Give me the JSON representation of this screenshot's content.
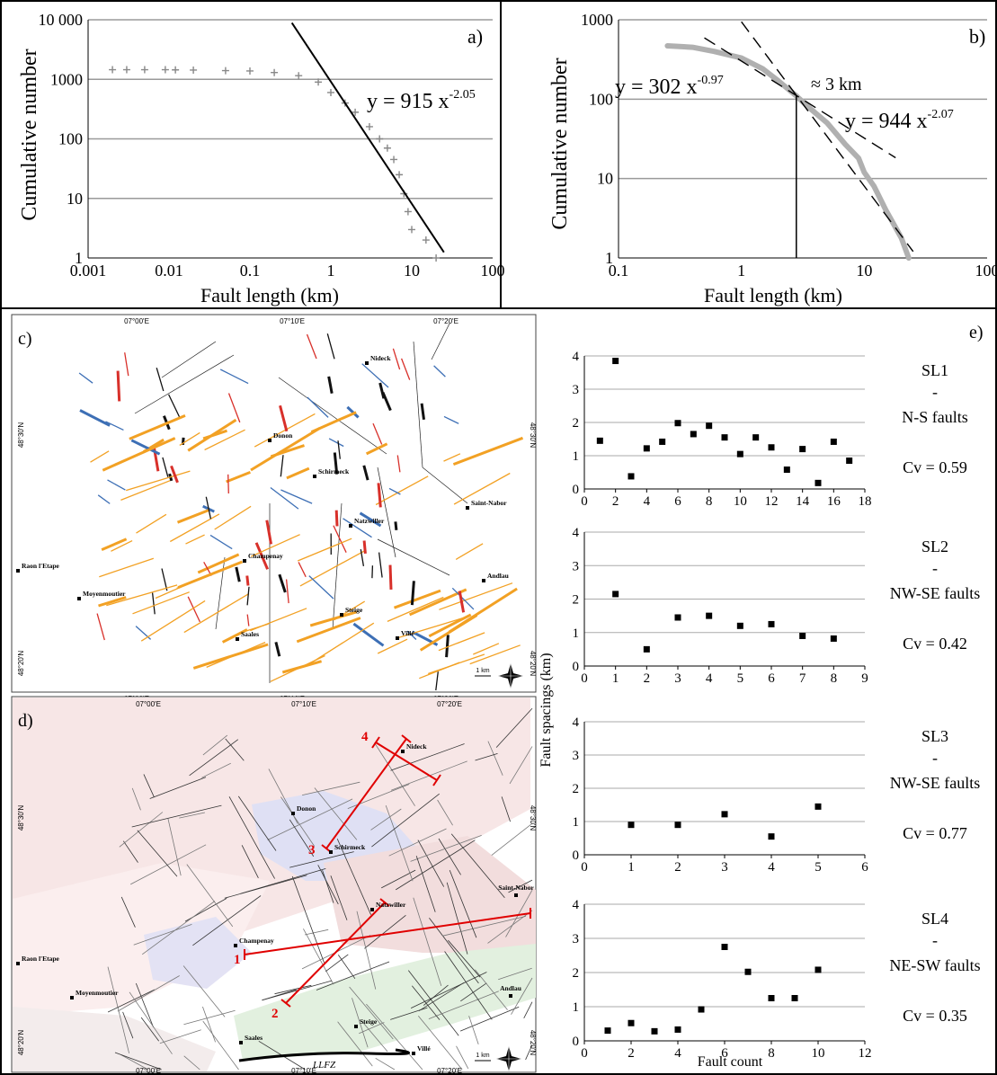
{
  "figure": {
    "panel_a": {
      "tag": "a)",
      "xlabel": "Fault length (km)",
      "ylabel": "Cumulative number",
      "x_ticks": [
        "0.001",
        "0.01",
        "0.1",
        "1",
        "10",
        "100"
      ],
      "y_ticks": [
        "1",
        "10",
        "100",
        "1000",
        "10 000"
      ],
      "eq_main": "y = 915 x",
      "eq_exp": "-2.05"
    },
    "panel_b": {
      "tag": "b)",
      "xlabel": "Fault length (km)",
      "ylabel": "Cumulative number",
      "x_ticks": [
        "0.1",
        "1",
        "10",
        "100"
      ],
      "y_ticks": [
        "1",
        "10",
        "100",
        "1000"
      ],
      "eq1_main": "y = 302 x",
      "eq1_exp": "-0.97",
      "eq2_main": "y = 944 x",
      "eq2_exp": "-2.07",
      "break_label": "≈ 3 km"
    },
    "panel_c": {
      "tag": "c)",
      "lon_labels": [
        "07°00'E",
        "07°10'E",
        "07°20'E"
      ],
      "lat_labels": [
        "48°30'N",
        "48°20'N"
      ],
      "towns": [
        "Nideck",
        "Donon",
        "Schirmeck",
        "Natzwiller",
        "Saint-Nabor",
        "Champenay",
        "Raon l'Etape",
        "Moyenmoutier",
        "Andlau",
        "Steige",
        "Saales",
        "Villé"
      ],
      "scale": "1 km"
    },
    "panel_d": {
      "tag": "d)",
      "lon_labels": [
        "07°00'E",
        "07°10'E",
        "07°20'E"
      ],
      "lat_labels": [
        "48°30'N",
        "48°20'N"
      ],
      "towns": [
        "Nideck",
        "Donon",
        "Schirmeck",
        "Natzwiller",
        "Saint-Nabor",
        "Champenay",
        "Raon l'Etape",
        "Moyenmoutier",
        "Andlau",
        "Steige",
        "Saales",
        "Villé"
      ],
      "line_numbers": [
        "1",
        "2",
        "3",
        "4"
      ],
      "llfz": "LLFZ",
      "scale": "1 km"
    },
    "panel_e": {
      "tag": "e)",
      "ylabel": "Fault spacings (km)",
      "xlabel": "Fault count",
      "dash": "-",
      "colors": {
        "marker": "#000000",
        "grid": "#aaaaaa"
      }
    }
  },
  "chart_data": [
    {
      "type": "scatter",
      "panel": "a",
      "title": "",
      "xlabel": "Fault length (km)",
      "ylabel": "Cumulative number",
      "x_scale": "log",
      "y_scale": "log",
      "xlim": [
        0.001,
        100
      ],
      "ylim": [
        1,
        10000
      ],
      "grid": "horizontal",
      "series": [
        {
          "x": [
            0.002,
            0.003,
            0.005,
            0.009,
            0.012,
            0.02,
            0.05,
            0.1,
            0.2,
            0.4,
            0.7,
            1.0,
            1.5,
            2,
            3,
            4,
            5,
            6,
            7,
            8,
            9,
            10,
            15,
            20
          ],
          "y": [
            1450,
            1450,
            1450,
            1450,
            1440,
            1430,
            1400,
            1380,
            1300,
            1150,
            900,
            600,
            400,
            280,
            160,
            100,
            70,
            45,
            25,
            12,
            6,
            3,
            2,
            1
          ]
        }
      ],
      "fit": {
        "a": 915,
        "b": -2.05,
        "x_range": [
          0.33,
          25
        ],
        "label_main": "y = 915 x",
        "label_exp": "-2.05"
      },
      "colors": {
        "points": "#888888",
        "fit": "#000000"
      }
    },
    {
      "type": "line",
      "panel": "b",
      "title": "",
      "xlabel": "Fault length (km)",
      "ylabel": "Cumulative number",
      "x_scale": "log",
      "y_scale": "log",
      "xlim": [
        0.1,
        100
      ],
      "ylim": [
        1,
        1000
      ],
      "grid": "horizontal",
      "series": [
        {
          "x": [
            0.25,
            0.4,
            0.6,
            1.0,
            1.5,
            2.0,
            2.8,
            3.5,
            5,
            7,
            9,
            10,
            12,
            15,
            20,
            23
          ],
          "y": [
            470,
            450,
            400,
            330,
            240,
            170,
            110,
            80,
            50,
            27,
            18,
            12,
            8,
            4,
            1.8,
            1
          ]
        }
      ],
      "fits": [
        {
          "a": 302,
          "b": -0.97,
          "x_range": [
            0.5,
            18
          ]
        },
        {
          "a": 944,
          "b": -2.07,
          "x_range": [
            1.0,
            25
          ]
        }
      ],
      "break_x": 2.8,
      "colors": {
        "data": "#b0b0b0",
        "fit": "#000000"
      }
    },
    {
      "type": "scatter",
      "panel": "e",
      "name": "SL1",
      "labels": [
        "SL1",
        "-",
        "N-S faults",
        "Cv = 0.59"
      ],
      "xlim": [
        0,
        18
      ],
      "ylim": [
        0,
        4
      ],
      "x_ticks": [
        0,
        2,
        4,
        6,
        8,
        10,
        12,
        14,
        16,
        18
      ],
      "y_ticks": [
        0,
        1,
        2,
        3,
        4
      ],
      "x": [
        1,
        2,
        3,
        4,
        5,
        6,
        7,
        8,
        9,
        10,
        11,
        12,
        13,
        14,
        15,
        16,
        17
      ],
      "y": [
        1.45,
        3.85,
        0.38,
        1.22,
        1.42,
        1.98,
        1.65,
        1.9,
        1.55,
        1.05,
        1.55,
        1.25,
        0.58,
        1.2,
        0.18,
        1.42,
        0.85
      ]
    },
    {
      "type": "scatter",
      "panel": "e",
      "name": "SL2",
      "labels": [
        "SL2",
        "-",
        "NW-SE faults",
        "Cv = 0.42"
      ],
      "xlim": [
        0,
        9
      ],
      "ylim": [
        0,
        4
      ],
      "x_ticks": [
        0,
        1,
        2,
        3,
        4,
        5,
        6,
        7,
        8,
        9
      ],
      "y_ticks": [
        0,
        1,
        2,
        3,
        4
      ],
      "x": [
        1,
        2,
        3,
        4,
        5,
        6,
        7,
        8
      ],
      "y": [
        2.15,
        0.5,
        1.45,
        1.5,
        1.2,
        1.25,
        0.9,
        0.82
      ]
    },
    {
      "type": "scatter",
      "panel": "e",
      "name": "SL3",
      "labels": [
        "SL3",
        "-",
        "NW-SE faults",
        "Cv = 0.77"
      ],
      "xlim": [
        0,
        6
      ],
      "ylim": [
        0,
        4
      ],
      "x_ticks": [
        0,
        1,
        2,
        3,
        4,
        5,
        6
      ],
      "y_ticks": [
        0,
        1,
        2,
        3,
        4
      ],
      "x": [
        1,
        2,
        3,
        4,
        5
      ],
      "y": [
        0.9,
        0.9,
        1.22,
        0.55,
        1.45
      ]
    },
    {
      "type": "scatter",
      "panel": "e",
      "name": "SL4",
      "labels": [
        "SL4",
        "-",
        "NE-SW faults",
        "Cv = 0.35"
      ],
      "xlim": [
        0,
        12
      ],
      "ylim": [
        0,
        4
      ],
      "x_ticks": [
        0,
        2,
        4,
        6,
        8,
        10,
        12
      ],
      "y_ticks": [
        0,
        1,
        2,
        3,
        4
      ],
      "x": [
        1,
        2,
        3,
        4,
        5,
        6,
        7,
        8,
        9,
        10
      ],
      "y": [
        0.3,
        0.52,
        0.28,
        0.33,
        0.92,
        2.75,
        2.02,
        1.25,
        1.25,
        2.08
      ]
    }
  ]
}
